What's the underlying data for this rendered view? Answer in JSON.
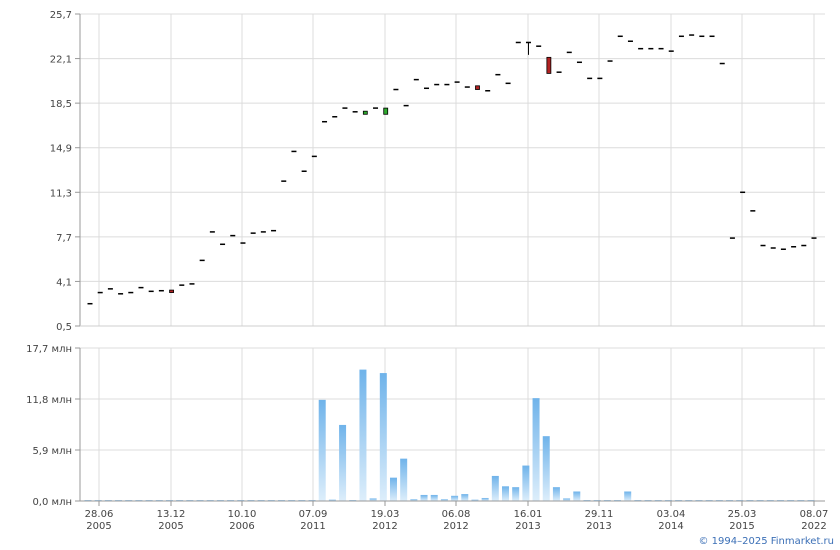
{
  "chart_data": [
    {
      "type": "candlestick",
      "ylim": [
        0.5,
        25.7
      ],
      "yticks": [
        "25,7",
        "22,1",
        "18,5",
        "14,9",
        "11,3",
        "7,7",
        "4,1",
        "0,5"
      ],
      "grid": true,
      "colors": {
        "up": "#2eaa2e",
        "down": "#b22222",
        "flat": "#000000"
      },
      "candles": [
        {
          "o": 2.3,
          "h": 2.3,
          "l": 2.3,
          "c": 2.3
        },
        {
          "o": 3.2,
          "h": 3.2,
          "l": 3.2,
          "c": 3.2
        },
        {
          "o": 3.5,
          "h": 3.5,
          "l": 3.5,
          "c": 3.5
        },
        {
          "o": 3.1,
          "h": 3.1,
          "l": 3.1,
          "c": 3.1
        },
        {
          "o": 3.2,
          "h": 3.2,
          "l": 3.2,
          "c": 3.2
        },
        {
          "o": 3.6,
          "h": 3.6,
          "l": 3.6,
          "c": 3.6
        },
        {
          "o": 3.3,
          "h": 3.3,
          "l": 3.3,
          "c": 3.3
        },
        {
          "o": 3.35,
          "h": 3.35,
          "l": 3.35,
          "c": 3.35
        },
        {
          "o": 3.4,
          "h": 3.4,
          "l": 3.2,
          "c": 3.2
        },
        {
          "o": 3.8,
          "h": 3.8,
          "l": 3.8,
          "c": 3.8
        },
        {
          "o": 3.9,
          "h": 3.9,
          "l": 3.9,
          "c": 3.9
        },
        {
          "o": 5.8,
          "h": 5.8,
          "l": 5.8,
          "c": 5.8
        },
        {
          "o": 8.1,
          "h": 8.1,
          "l": 8.1,
          "c": 8.1
        },
        {
          "o": 7.1,
          "h": 7.1,
          "l": 7.1,
          "c": 7.1
        },
        {
          "o": 7.8,
          "h": 7.8,
          "l": 7.8,
          "c": 7.8
        },
        {
          "o": 7.2,
          "h": 7.2,
          "l": 7.2,
          "c": 7.2
        },
        {
          "o": 8.0,
          "h": 8.0,
          "l": 8.0,
          "c": 8.0
        },
        {
          "o": 8.1,
          "h": 8.1,
          "l": 8.1,
          "c": 8.1
        },
        {
          "o": 8.2,
          "h": 8.2,
          "l": 8.2,
          "c": 8.2
        },
        {
          "o": 12.2,
          "h": 12.2,
          "l": 12.2,
          "c": 12.2
        },
        {
          "o": 14.6,
          "h": 14.6,
          "l": 14.6,
          "c": 14.6
        },
        {
          "o": 13.0,
          "h": 13.0,
          "l": 13.0,
          "c": 13.0
        },
        {
          "o": 14.2,
          "h": 14.2,
          "l": 14.2,
          "c": 14.2
        },
        {
          "o": 17.0,
          "h": 17.0,
          "l": 17.0,
          "c": 17.0
        },
        {
          "o": 17.4,
          "h": 17.4,
          "l": 17.4,
          "c": 17.4
        },
        {
          "o": 18.1,
          "h": 18.1,
          "l": 18.1,
          "c": 18.1
        },
        {
          "o": 17.8,
          "h": 17.8,
          "l": 17.8,
          "c": 17.8
        },
        {
          "o": 17.6,
          "h": 17.85,
          "l": 17.6,
          "c": 17.85
        },
        {
          "o": 18.1,
          "h": 18.1,
          "l": 18.1,
          "c": 18.1
        },
        {
          "o": 17.6,
          "h": 18.1,
          "l": 17.6,
          "c": 18.1
        },
        {
          "o": 19.6,
          "h": 19.6,
          "l": 19.6,
          "c": 19.6
        },
        {
          "o": 18.3,
          "h": 18.3,
          "l": 18.3,
          "c": 18.3
        },
        {
          "o": 20.4,
          "h": 20.4,
          "l": 20.4,
          "c": 20.4
        },
        {
          "o": 19.7,
          "h": 19.7,
          "l": 19.7,
          "c": 19.7
        },
        {
          "o": 20.0,
          "h": 20.0,
          "l": 20.0,
          "c": 20.0
        },
        {
          "o": 20.0,
          "h": 20.0,
          "l": 20.0,
          "c": 20.0
        },
        {
          "o": 20.2,
          "h": 20.2,
          "l": 20.2,
          "c": 20.2
        },
        {
          "o": 19.8,
          "h": 19.8,
          "l": 19.8,
          "c": 19.8
        },
        {
          "o": 19.9,
          "h": 19.9,
          "l": 19.6,
          "c": 19.6
        },
        {
          "o": 19.5,
          "h": 19.5,
          "l": 19.5,
          "c": 19.5
        },
        {
          "o": 20.8,
          "h": 20.8,
          "l": 20.8,
          "c": 20.8
        },
        {
          "o": 20.1,
          "h": 20.1,
          "l": 20.1,
          "c": 20.1
        },
        {
          "o": 23.4,
          "h": 23.4,
          "l": 23.4,
          "c": 23.4
        },
        {
          "o": 23.4,
          "h": 23.4,
          "l": 22.4,
          "c": 23.4
        },
        {
          "o": 23.1,
          "h": 23.1,
          "l": 23.1,
          "c": 23.1
        },
        {
          "o": 22.2,
          "h": 22.2,
          "l": 20.9,
          "c": 20.9
        },
        {
          "o": 21.0,
          "h": 21.0,
          "l": 21.0,
          "c": 21.0
        },
        {
          "o": 22.6,
          "h": 22.6,
          "l": 22.6,
          "c": 22.6
        },
        {
          "o": 21.8,
          "h": 21.8,
          "l": 21.8,
          "c": 21.8
        },
        {
          "o": 20.5,
          "h": 20.5,
          "l": 20.5,
          "c": 20.5
        },
        {
          "o": 20.5,
          "h": 20.5,
          "l": 20.5,
          "c": 20.5
        },
        {
          "o": 21.9,
          "h": 21.9,
          "l": 21.9,
          "c": 21.9
        },
        {
          "o": 23.9,
          "h": 23.9,
          "l": 23.9,
          "c": 23.9
        },
        {
          "o": 23.5,
          "h": 23.5,
          "l": 23.5,
          "c": 23.5
        },
        {
          "o": 22.9,
          "h": 22.9,
          "l": 22.9,
          "c": 22.9
        },
        {
          "o": 22.9,
          "h": 22.9,
          "l": 22.9,
          "c": 22.9
        },
        {
          "o": 22.9,
          "h": 22.9,
          "l": 22.9,
          "c": 22.9
        },
        {
          "o": 22.7,
          "h": 22.7,
          "l": 22.7,
          "c": 22.7
        },
        {
          "o": 23.9,
          "h": 23.9,
          "l": 23.9,
          "c": 23.9
        },
        {
          "o": 24.0,
          "h": 24.0,
          "l": 24.0,
          "c": 24.0
        },
        {
          "o": 23.9,
          "h": 23.9,
          "l": 23.9,
          "c": 23.9
        },
        {
          "o": 23.9,
          "h": 23.9,
          "l": 23.9,
          "c": 23.9
        },
        {
          "o": 21.7,
          "h": 21.7,
          "l": 21.7,
          "c": 21.7
        },
        {
          "o": 7.6,
          "h": 7.6,
          "l": 7.6,
          "c": 7.6
        },
        {
          "o": 11.3,
          "h": 11.3,
          "l": 11.3,
          "c": 11.3
        },
        {
          "o": 9.8,
          "h": 9.8,
          "l": 9.8,
          "c": 9.8
        },
        {
          "o": 7.0,
          "h": 7.0,
          "l": 7.0,
          "c": 7.0
        },
        {
          "o": 6.8,
          "h": 6.8,
          "l": 6.8,
          "c": 6.8
        },
        {
          "o": 6.7,
          "h": 6.7,
          "l": 6.7,
          "c": 6.7
        },
        {
          "o": 6.9,
          "h": 6.9,
          "l": 6.9,
          "c": 6.9
        },
        {
          "o": 7.0,
          "h": 7.0,
          "l": 7.0,
          "c": 7.0
        },
        {
          "o": 7.6,
          "h": 7.6,
          "l": 7.6,
          "c": 7.6
        }
      ]
    },
    {
      "type": "bar",
      "ylim": [
        0,
        17.7
      ],
      "yticks": [
        "17,7 млн",
        "11,8 млн",
        "5,9 млн",
        "0,0 млн"
      ],
      "xticks": [
        {
          "date": "28.06",
          "year": "2005"
        },
        {
          "date": "13.12",
          "year": "2005"
        },
        {
          "date": "10.10",
          "year": "2006"
        },
        {
          "date": "07.09",
          "year": "2011"
        },
        {
          "date": "19.03",
          "year": "2012"
        },
        {
          "date": "06.08",
          "year": "2012"
        },
        {
          "date": "16.01",
          "year": "2013"
        },
        {
          "date": "29.11",
          "year": "2013"
        },
        {
          "date": "03.04",
          "year": "2014"
        },
        {
          "date": "25.03",
          "year": "2015"
        },
        {
          "date": "08.07",
          "year": "2022"
        }
      ],
      "color": "#6fb3ea",
      "volumes": [
        0.1,
        0.1,
        0.1,
        0.1,
        0.1,
        0.1,
        0.1,
        0.1,
        0.1,
        0.1,
        0.1,
        0.1,
        0.1,
        0.1,
        0.1,
        0.1,
        0.1,
        0.1,
        0.1,
        0.1,
        0.1,
        0.1,
        0.1,
        11.7,
        0.15,
        8.8,
        0.1,
        15.2,
        0.3,
        14.8,
        2.7,
        4.9,
        0.2,
        0.7,
        0.7,
        0.2,
        0.6,
        0.8,
        0.15,
        0.35,
        2.9,
        1.7,
        1.6,
        4.1,
        11.9,
        7.5,
        1.6,
        0.3,
        1.1,
        0.1,
        0.1,
        0.1,
        0.1,
        1.1,
        0.1,
        0.1,
        0.1,
        0.1,
        0.1,
        0.1,
        0.1,
        0.1,
        0.1,
        0.1,
        0.1,
        0.1,
        0.1,
        0.1,
        0.1,
        0.1,
        0.1,
        0.1
      ]
    }
  ],
  "footer": {
    "copyright": "© 1994–2025 Finmarket.ru"
  }
}
